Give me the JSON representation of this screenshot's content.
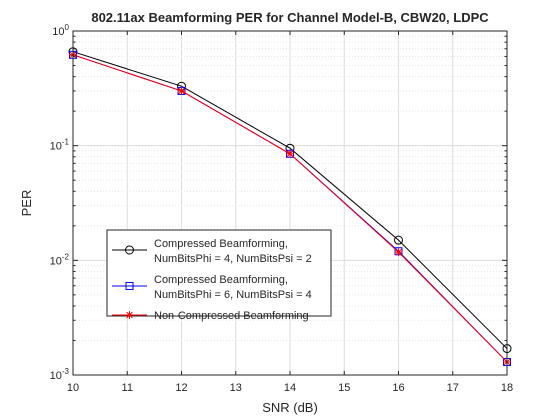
{
  "chart_data": {
    "type": "line",
    "title": "802.11ax Beamforming PER for Channel Model-B, CBW20, LDPC",
    "xlabel": "SNR (dB)",
    "ylabel": "PER",
    "xlim": [
      10,
      18
    ],
    "ylim": [
      0.001,
      1
    ],
    "yscale": "log",
    "grid": true,
    "minor_grid": true,
    "legend_position": "lower-left",
    "x_ticks": [
      "10",
      "11",
      "12",
      "13",
      "14",
      "15",
      "16",
      "17",
      "18"
    ],
    "y_ticks": [
      {
        "base": "10",
        "exp": "0",
        "value": 1
      },
      {
        "base": "10",
        "exp": "-1",
        "value": 0.1
      },
      {
        "base": "10",
        "exp": "-2",
        "value": 0.01
      },
      {
        "base": "10",
        "exp": "-3",
        "value": 0.001
      }
    ],
    "x": [
      10,
      12,
      14,
      16,
      18
    ],
    "series": [
      {
        "name_lines": [
          "Compressed Beamforming,",
          "NumBitsPhi = 4, NumBitsPsi = 2"
        ],
        "marker": "circle",
        "color": "#000000",
        "values": [
          0.66,
          0.33,
          0.095,
          0.015,
          0.0017
        ]
      },
      {
        "name_lines": [
          "Compressed Beamforming,",
          "NumBitsPhi = 6, NumBitsPsi = 4"
        ],
        "marker": "square",
        "color": "#0000ff",
        "values": [
          0.62,
          0.3,
          0.085,
          0.012,
          0.0013
        ]
      },
      {
        "name_lines": [
          "Non-Compressed Beamforming"
        ],
        "marker": "asterisk",
        "color": "#ff0000",
        "values": [
          0.62,
          0.3,
          0.085,
          0.0118,
          0.0013
        ]
      }
    ]
  }
}
